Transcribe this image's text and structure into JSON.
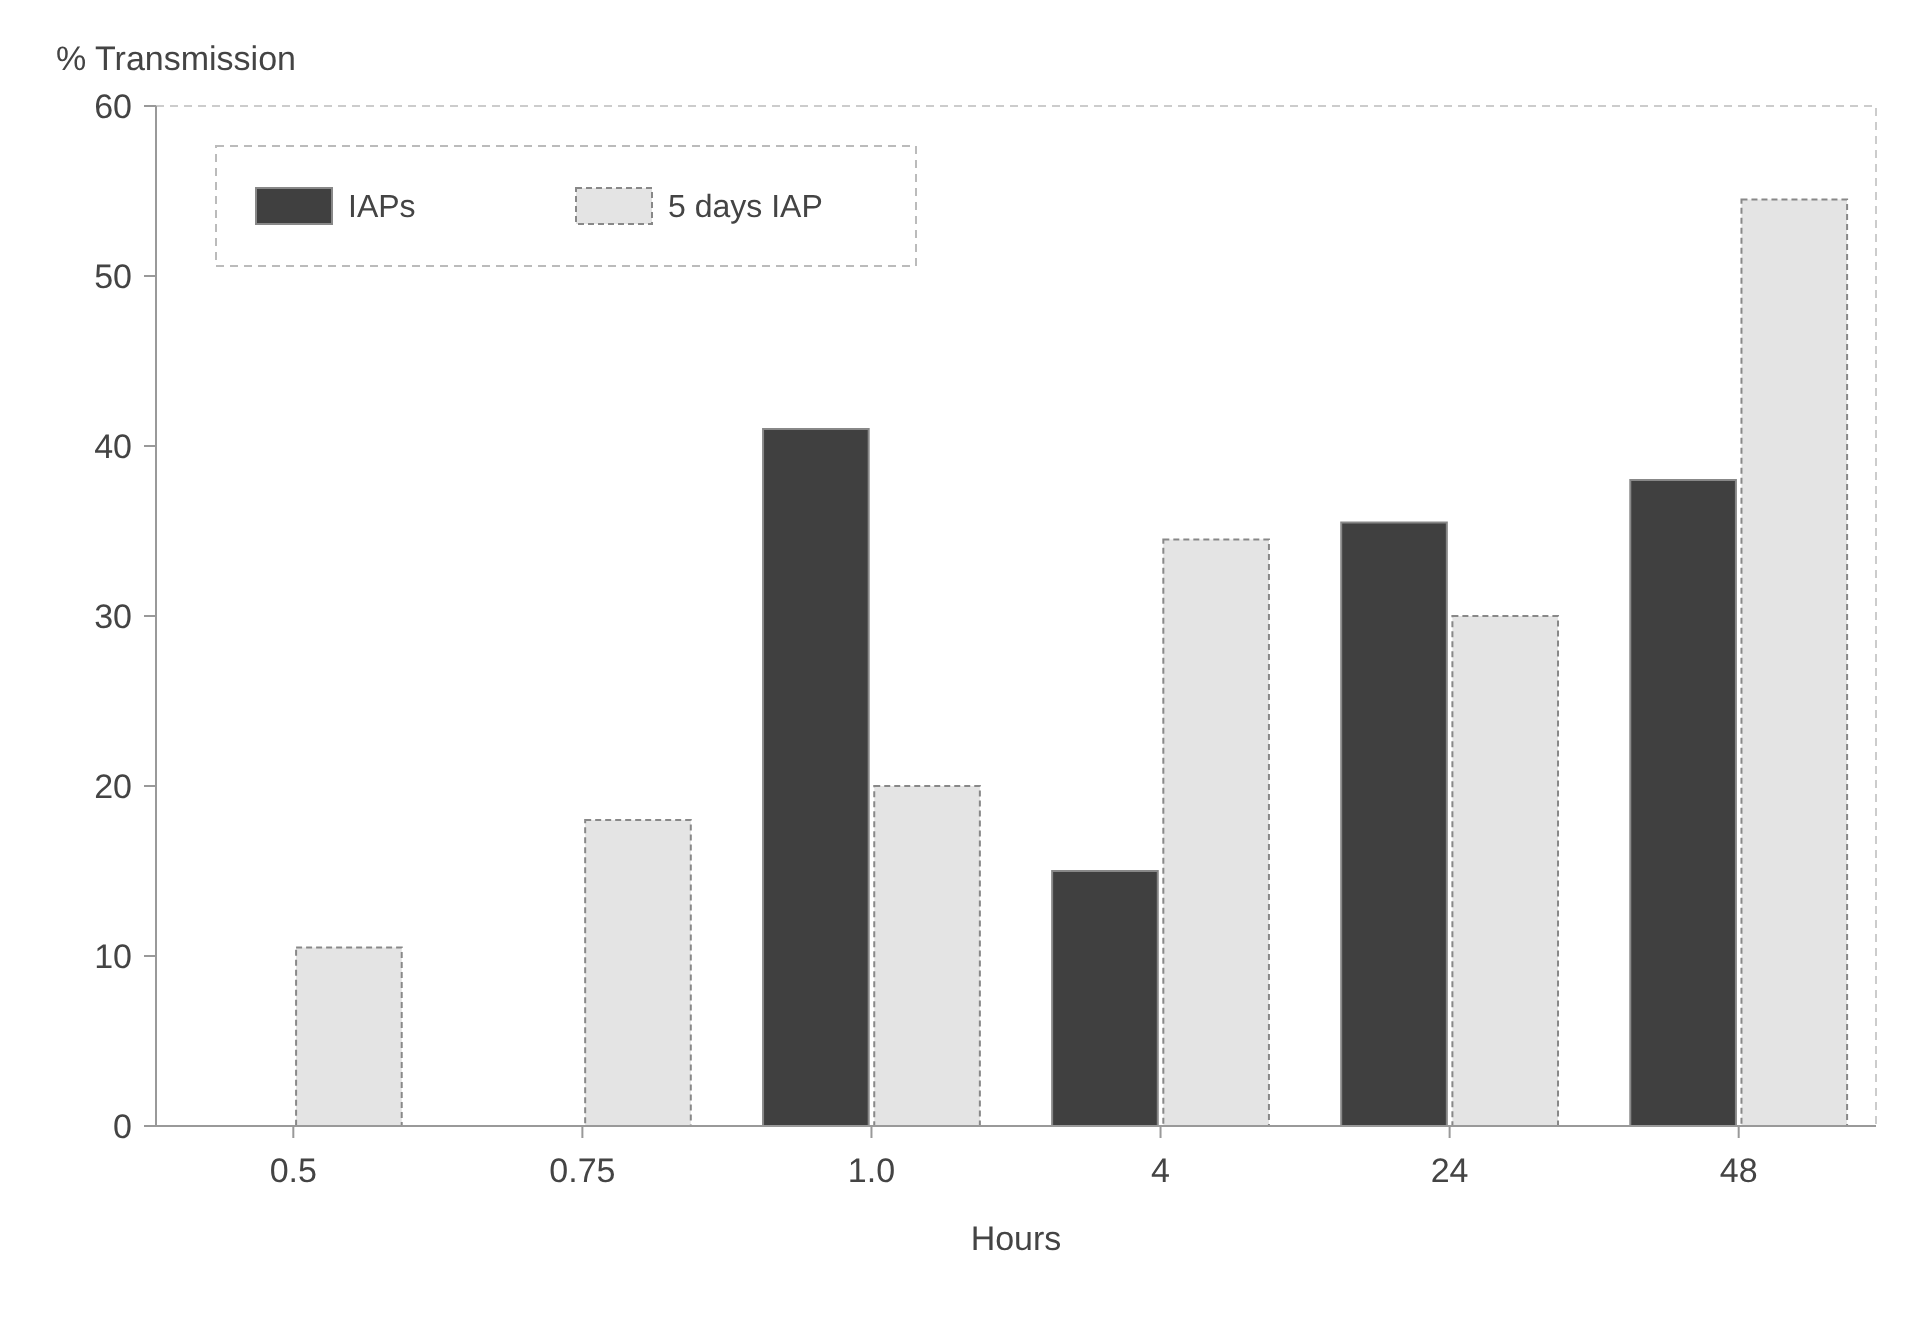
{
  "chart_data": {
    "type": "bar",
    "ylabel": "% Transmission",
    "xlabel": "Hours",
    "categories": [
      "0.5",
      "0.75",
      "1.0",
      "4",
      "24",
      "48"
    ],
    "series": [
      {
        "name": "IAPs",
        "color": "#404040",
        "values": [
          null,
          null,
          41,
          15,
          35.5,
          38
        ]
      },
      {
        "name": "5 days IAP",
        "color": "#e4e4e4",
        "values": [
          10.5,
          18,
          20,
          34.5,
          30,
          54.5
        ]
      }
    ],
    "ylim": [
      0,
      60
    ],
    "yticks": [
      0,
      10,
      20,
      30,
      40,
      50,
      60
    ],
    "grid": false,
    "legend": "top left"
  }
}
